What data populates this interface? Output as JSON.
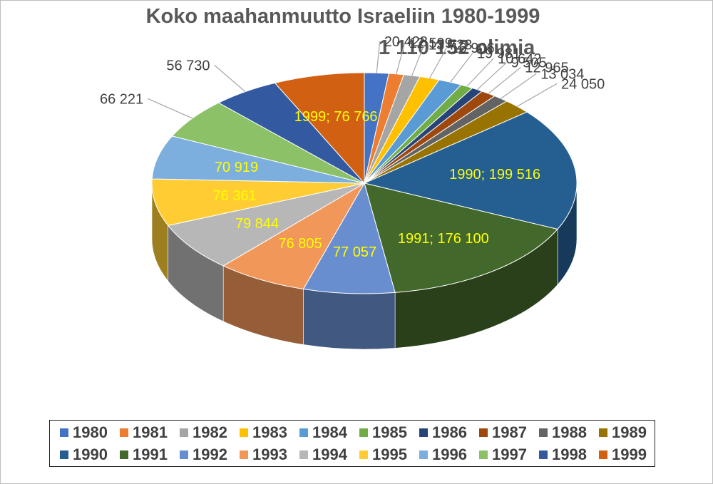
{
  "chart_data": {
    "type": "pie",
    "title": "Koko maahanmuutto Israeliin 1980-1999",
    "subtitle": "1 110 152 olimia",
    "categories": [
      "1980",
      "1981",
      "1982",
      "1983",
      "1984",
      "1985",
      "1986",
      "1987",
      "1988",
      "1989",
      "1990",
      "1991",
      "1992",
      "1993",
      "1994",
      "1995",
      "1996",
      "1997",
      "1998",
      "1999"
    ],
    "values": [
      20428,
      12599,
      13723,
      16906,
      19981,
      10642,
      9505,
      12965,
      13034,
      24050,
      199516,
      176100,
      77057,
      76805,
      79844,
      76361,
      70919,
      66221,
      56730,
      76766
    ],
    "data_labels": [
      "20 428",
      "12 599",
      "13 723",
      "16 906",
      "19 981",
      "10 642",
      "9 505",
      "12 965",
      "13 034",
      "24 050",
      "1990; 199 516",
      "1991; 176 100",
      "77 057",
      "76 805",
      "79 844",
      "76 361",
      "70 919",
      "66 221",
      "56 730",
      "1999; 76 766"
    ],
    "colors": [
      "#4472C4",
      "#ED7D31",
      "#A5A5A5",
      "#FFC000",
      "#5B9BD5",
      "#70AD47",
      "#264478",
      "#9E480E",
      "#636363",
      "#997300",
      "#255E91",
      "#43682B",
      "#698ED0",
      "#F1975A",
      "#B7B7B7",
      "#FFCD33",
      "#7CAFDD",
      "#8CC168",
      "#335AA1",
      "#D26012"
    ],
    "legend_position": "bottom",
    "style": "3d-pie"
  }
}
